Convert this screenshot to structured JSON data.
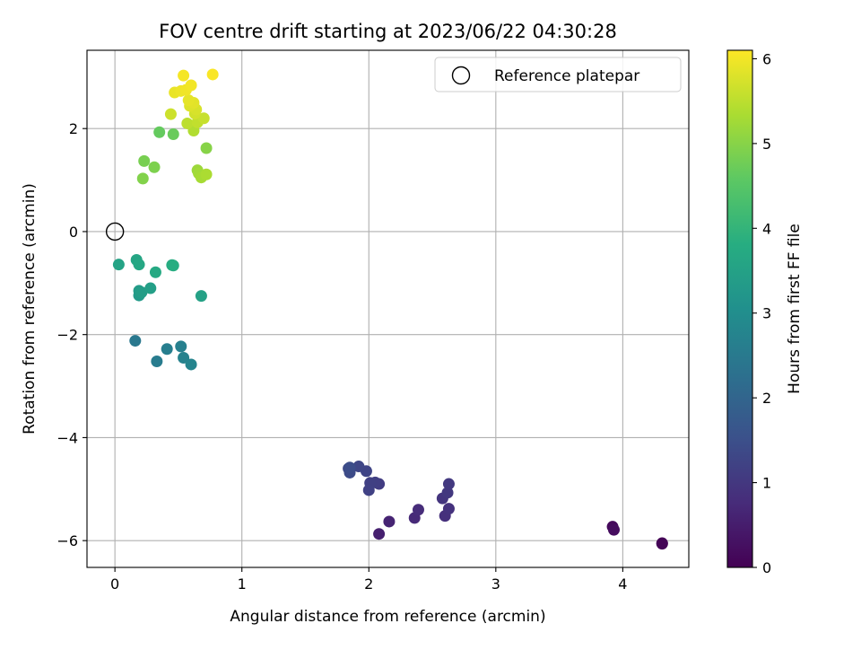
{
  "chart_data": {
    "type": "scatter",
    "title": "FOV centre drift starting at 2023/06/22 04:30:28",
    "xlabel": "Angular distance from reference (arcmin)",
    "ylabel": "Rotation from reference (arcmin)",
    "xlim": [
      -0.22,
      4.52
    ],
    "ylim": [
      -6.52,
      3.52
    ],
    "xticks": [
      0,
      1,
      2,
      3,
      4
    ],
    "xtick_labels": [
      "0",
      "1",
      "2",
      "3",
      "4"
    ],
    "yticks": [
      -6,
      -4,
      -2,
      0,
      2
    ],
    "ytick_labels": [
      "−6",
      "−4",
      "−2",
      "0",
      "2"
    ],
    "grid": true,
    "colormap": "viridis",
    "colorbar": {
      "label": "Hours from first FF file",
      "range": [
        0,
        6.1
      ],
      "ticks": [
        0,
        1,
        2,
        3,
        4,
        5,
        6
      ],
      "tick_labels": [
        "0",
        "1",
        "2",
        "3",
        "4",
        "5",
        "6"
      ]
    },
    "legend": {
      "position": "top-right",
      "entries": [
        {
          "label": "Reference platepar",
          "marker": "open-circle"
        }
      ]
    },
    "reference_point": {
      "x": 0,
      "y": 0
    },
    "points": [
      {
        "x": 4.31,
        "y": -6.05,
        "hours": 0.02
      },
      {
        "x": 4.31,
        "y": -6.06,
        "hours": 0.05
      },
      {
        "x": 3.92,
        "y": -5.73,
        "hours": 0.15
      },
      {
        "x": 3.93,
        "y": -5.79,
        "hours": 0.2
      },
      {
        "x": 2.08,
        "y": -5.87,
        "hours": 0.55
      },
      {
        "x": 2.16,
        "y": -5.63,
        "hours": 0.62
      },
      {
        "x": 2.36,
        "y": -5.56,
        "hours": 0.72
      },
      {
        "x": 2.39,
        "y": -5.4,
        "hours": 0.78
      },
      {
        "x": 2.6,
        "y": -5.52,
        "hours": 0.85
      },
      {
        "x": 2.63,
        "y": -5.38,
        "hours": 0.88
      },
      {
        "x": 2.58,
        "y": -5.18,
        "hours": 0.95
      },
      {
        "x": 2.62,
        "y": -5.07,
        "hours": 1.0
      },
      {
        "x": 2.63,
        "y": -4.9,
        "hours": 1.03
      },
      {
        "x": 2.08,
        "y": -4.9,
        "hours": 1.1
      },
      {
        "x": 2.05,
        "y": -4.87,
        "hours": 1.15
      },
      {
        "x": 2.01,
        "y": -4.88,
        "hours": 1.18
      },
      {
        "x": 2.0,
        "y": -5.02,
        "hours": 1.2
      },
      {
        "x": 1.98,
        "y": -4.65,
        "hours": 1.25
      },
      {
        "x": 1.92,
        "y": -4.56,
        "hours": 1.3
      },
      {
        "x": 1.84,
        "y": -4.6,
        "hours": 1.35
      },
      {
        "x": 1.85,
        "y": -4.68,
        "hours": 1.4
      },
      {
        "x": 1.85,
        "y": -4.58,
        "hours": 1.45
      },
      {
        "x": 0.16,
        "y": -2.12,
        "hours": 2.45
      },
      {
        "x": 0.33,
        "y": -2.52,
        "hours": 2.55
      },
      {
        "x": 0.41,
        "y": -2.28,
        "hours": 2.6
      },
      {
        "x": 0.52,
        "y": -2.23,
        "hours": 2.65
      },
      {
        "x": 0.54,
        "y": -2.45,
        "hours": 2.7
      },
      {
        "x": 0.6,
        "y": -2.58,
        "hours": 2.75
      },
      {
        "x": 0.19,
        "y": -1.24,
        "hours": 3.3
      },
      {
        "x": 0.19,
        "y": -1.15,
        "hours": 3.35
      },
      {
        "x": 0.21,
        "y": -1.18,
        "hours": 3.4
      },
      {
        "x": 0.28,
        "y": -1.1,
        "hours": 3.45
      },
      {
        "x": 0.68,
        "y": -1.25,
        "hours": 3.5
      },
      {
        "x": 0.03,
        "y": -0.64,
        "hours": 3.55
      },
      {
        "x": 0.17,
        "y": -0.55,
        "hours": 3.6
      },
      {
        "x": 0.19,
        "y": -0.64,
        "hours": 3.65
      },
      {
        "x": 0.32,
        "y": -0.79,
        "hours": 3.7
      },
      {
        "x": 0.45,
        "y": -0.65,
        "hours": 3.75
      },
      {
        "x": 0.46,
        "y": -0.66,
        "hours": 3.8
      },
      {
        "x": 0.35,
        "y": 1.93,
        "hours": 4.65
      },
      {
        "x": 0.46,
        "y": 1.89,
        "hours": 4.7
      },
      {
        "x": 0.23,
        "y": 1.37,
        "hours": 4.85
      },
      {
        "x": 0.31,
        "y": 1.25,
        "hours": 4.9
      },
      {
        "x": 0.22,
        "y": 1.03,
        "hours": 4.95
      },
      {
        "x": 0.72,
        "y": 1.62,
        "hours": 5.0
      },
      {
        "x": 0.65,
        "y": 1.19,
        "hours": 5.2
      },
      {
        "x": 0.66,
        "y": 1.13,
        "hours": 5.25
      },
      {
        "x": 0.68,
        "y": 1.05,
        "hours": 5.3
      },
      {
        "x": 0.72,
        "y": 1.11,
        "hours": 5.35
      },
      {
        "x": 0.62,
        "y": 1.96,
        "hours": 5.4
      },
      {
        "x": 0.57,
        "y": 2.1,
        "hours": 5.5
      },
      {
        "x": 0.65,
        "y": 2.12,
        "hours": 5.55
      },
      {
        "x": 0.7,
        "y": 2.2,
        "hours": 5.6
      },
      {
        "x": 0.44,
        "y": 2.28,
        "hours": 5.65
      },
      {
        "x": 0.63,
        "y": 2.29,
        "hours": 5.7
      },
      {
        "x": 0.64,
        "y": 2.37,
        "hours": 5.75
      },
      {
        "x": 0.59,
        "y": 2.44,
        "hours": 5.8
      },
      {
        "x": 0.62,
        "y": 2.5,
        "hours": 5.85
      },
      {
        "x": 0.58,
        "y": 2.55,
        "hours": 5.88
      },
      {
        "x": 0.47,
        "y": 2.7,
        "hours": 5.92
      },
      {
        "x": 0.52,
        "y": 2.73,
        "hours": 5.95
      },
      {
        "x": 0.56,
        "y": 2.75,
        "hours": 5.98
      },
      {
        "x": 0.6,
        "y": 2.84,
        "hours": 6.0
      },
      {
        "x": 0.54,
        "y": 3.03,
        "hours": 6.03
      },
      {
        "x": 0.77,
        "y": 3.05,
        "hours": 6.06
      }
    ]
  }
}
